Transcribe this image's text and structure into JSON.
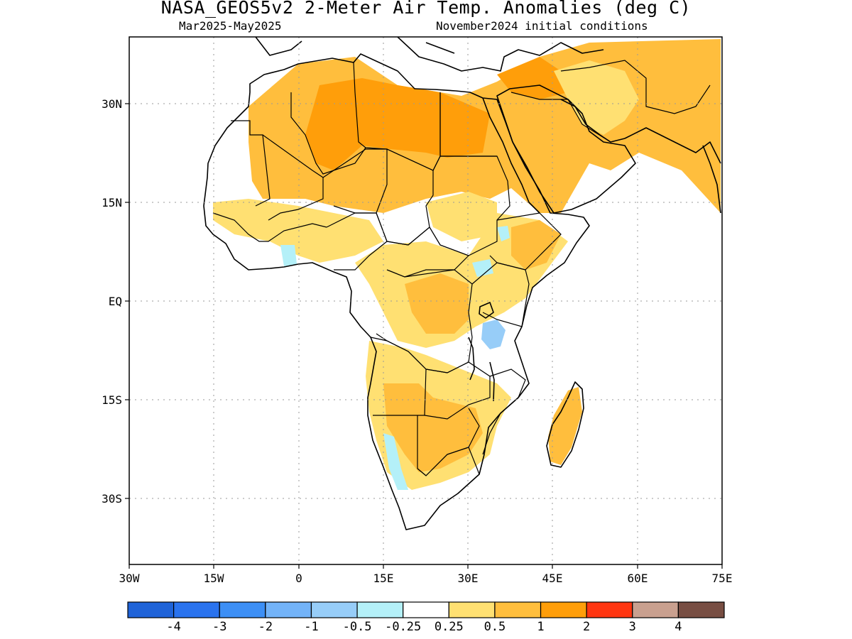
{
  "map": {
    "title": "NASA_GEOS5v2 2-Meter Air Temp. Anomalies (deg C)",
    "period": "Mar2025-May2025",
    "init": "November2024 initial conditions",
    "lat_labels": [
      "30N",
      "15N",
      "EQ",
      "15S",
      "30S"
    ],
    "lon_labels": [
      "30W",
      "15W",
      "0",
      "15E",
      "30E",
      "45E",
      "60E",
      "75E"
    ],
    "extent": {
      "lon": [
        -30,
        75
      ],
      "lat": [
        -40,
        40
      ]
    }
  },
  "legend": {
    "colors": [
      "#1f63d8",
      "#2a73ee",
      "#3d8ff5",
      "#73b3f8",
      "#97cdf8",
      "#b4f0f8",
      "#ffffff",
      "#ffe072",
      "#ffbe3d",
      "#ff9e0a",
      "#ff3611",
      "#c9a08f",
      "#784e43"
    ],
    "labels": [
      "-4",
      "-3",
      "-2",
      "-1",
      "-0.5",
      "-0.25",
      "0.25",
      "0.5",
      "1",
      "2",
      "3",
      "4"
    ]
  }
}
